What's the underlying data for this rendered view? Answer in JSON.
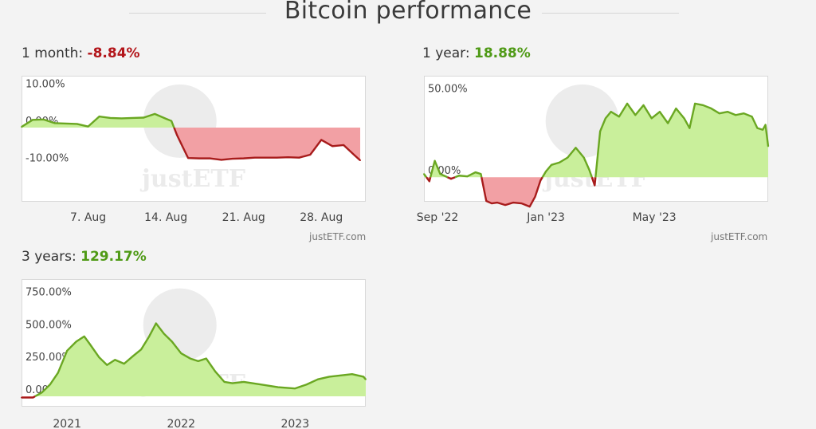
{
  "page": {
    "title": "Bitcoin performance",
    "credit": "justETF.com",
    "watermark": "justETF"
  },
  "colors": {
    "positive_fill": "#c9ef9b",
    "positive_line": "#6aa722",
    "negative_fill": "#f2a0a4",
    "negative_line": "#a81c1c",
    "positive_text": "#4f9a16",
    "negative_text": "#b3151a"
  },
  "panels": [
    {
      "label": "1 month: ",
      "value": "-8.84%",
      "sign": "negative"
    },
    {
      "label": "1 year: ",
      "value": "18.88%",
      "sign": "positive"
    },
    {
      "label": "3 years: ",
      "value": "129.17%",
      "sign": "positive"
    }
  ],
  "chart_data": [
    {
      "type": "area",
      "title": "1 month: -8.84%",
      "ylim": [
        -20,
        14
      ],
      "yticks": [
        10,
        0,
        -10
      ],
      "ytick_labels": [
        "10.00%",
        "0.00%",
        "-10.00%"
      ],
      "xlim": [
        1,
        32
      ],
      "xticks": [
        7,
        14,
        21,
        28
      ],
      "xtick_labels": [
        "7. Aug",
        "14. Aug",
        "21. Aug",
        "28. Aug"
      ],
      "baseline": 0,
      "x": [
        1,
        2,
        3,
        4,
        5,
        6,
        7,
        8,
        9,
        10,
        11,
        12,
        13,
        14,
        14.5,
        15,
        16,
        17,
        18,
        19,
        20,
        21,
        22,
        23,
        24,
        25,
        26,
        27,
        28,
        29,
        30,
        31,
        31.5
      ],
      "values": [
        0.2,
        2.1,
        2.2,
        1.2,
        1.1,
        1.0,
        0.3,
        3.0,
        2.6,
        2.5,
        2.6,
        2.7,
        3.7,
        2.4,
        1.8,
        -2.0,
        -8.2,
        -8.3,
        -8.3,
        -8.7,
        -8.4,
        -8.3,
        -8.1,
        -8.1,
        -8.1,
        -8.0,
        -8.1,
        -7.3,
        -3.3,
        -5.0,
        -4.7,
        -7.5,
        -8.84
      ]
    },
    {
      "type": "area",
      "title": "1 year: 18.88%",
      "ylim": [
        -15,
        62
      ],
      "yticks": [
        50,
        0
      ],
      "ytick_labels": [
        "50.00%",
        "0.00%"
      ],
      "xlim": [
        0,
        12.7
      ],
      "xticks": [
        0.5,
        4.5,
        8.5
      ],
      "xtick_labels": [
        "Sep '22",
        "Jan '23",
        "May '23"
      ],
      "baseline": 0,
      "x": [
        0,
        0.2,
        0.4,
        0.6,
        0.8,
        1.0,
        1.3,
        1.6,
        1.9,
        2.1,
        2.3,
        2.5,
        2.7,
        3.0,
        3.3,
        3.6,
        3.9,
        4.1,
        4.3,
        4.5,
        4.7,
        5.0,
        5.3,
        5.6,
        5.9,
        6.1,
        6.3,
        6.5,
        6.7,
        6.9,
        7.2,
        7.5,
        7.8,
        8.1,
        8.4,
        8.7,
        9.0,
        9.3,
        9.6,
        9.8,
        10.0,
        10.3,
        10.6,
        10.9,
        11.2,
        11.5,
        11.8,
        12.1,
        12.3,
        12.5,
        12.6,
        12.7
      ],
      "values": [
        2.0,
        -2.5,
        10.0,
        2.0,
        0.5,
        -1.0,
        1.0,
        0.5,
        3.0,
        2.0,
        -14.5,
        -16.0,
        -15.5,
        -17.0,
        -15.5,
        -16.0,
        -18.0,
        -12.0,
        -2.0,
        3.5,
        7.5,
        9.0,
        12.0,
        18.0,
        12.0,
        4.5,
        -5.0,
        28.0,
        36.0,
        40.0,
        37.0,
        45.0,
        38.0,
        44.0,
        36.0,
        40.0,
        33.0,
        42.0,
        36.0,
        30.0,
        45.0,
        44.0,
        42.0,
        39.0,
        40.0,
        38.0,
        39.0,
        37.0,
        30.0,
        29.0,
        32.0,
        18.88
      ]
    },
    {
      "type": "area",
      "title": "3 years: 129.17%",
      "ylim": [
        -80,
        900
      ],
      "yticks": [
        750,
        500,
        250,
        0
      ],
      "ytick_labels": [
        "750.00%",
        "500.00%",
        "250.00%",
        "0.00%"
      ],
      "xlim": [
        2020.6,
        2023.62
      ],
      "xticks": [
        2021,
        2022,
        2023
      ],
      "xtick_labels": [
        "2021",
        "2022",
        "2023"
      ],
      "baseline": 0,
      "x": [
        2020.6,
        2020.7,
        2020.78,
        2020.85,
        2020.92,
        2021.0,
        2021.08,
        2021.15,
        2021.2,
        2021.28,
        2021.35,
        2021.42,
        2021.5,
        2021.58,
        2021.65,
        2021.72,
        2021.78,
        2021.85,
        2021.92,
        2022.0,
        2022.08,
        2022.15,
        2022.22,
        2022.3,
        2022.38,
        2022.45,
        2022.55,
        2022.7,
        2022.85,
        2023.0,
        2023.1,
        2023.2,
        2023.3,
        2023.4,
        2023.5,
        2023.6,
        2023.62
      ],
      "values": [
        -10,
        -10,
        30,
        90,
        180,
        350,
        420,
        460,
        400,
        300,
        240,
        280,
        250,
        310,
        360,
        460,
        560,
        480,
        420,
        330,
        290,
        270,
        290,
        190,
        110,
        100,
        110,
        90,
        70,
        60,
        90,
        130,
        150,
        160,
        170,
        150,
        129.17
      ]
    }
  ]
}
